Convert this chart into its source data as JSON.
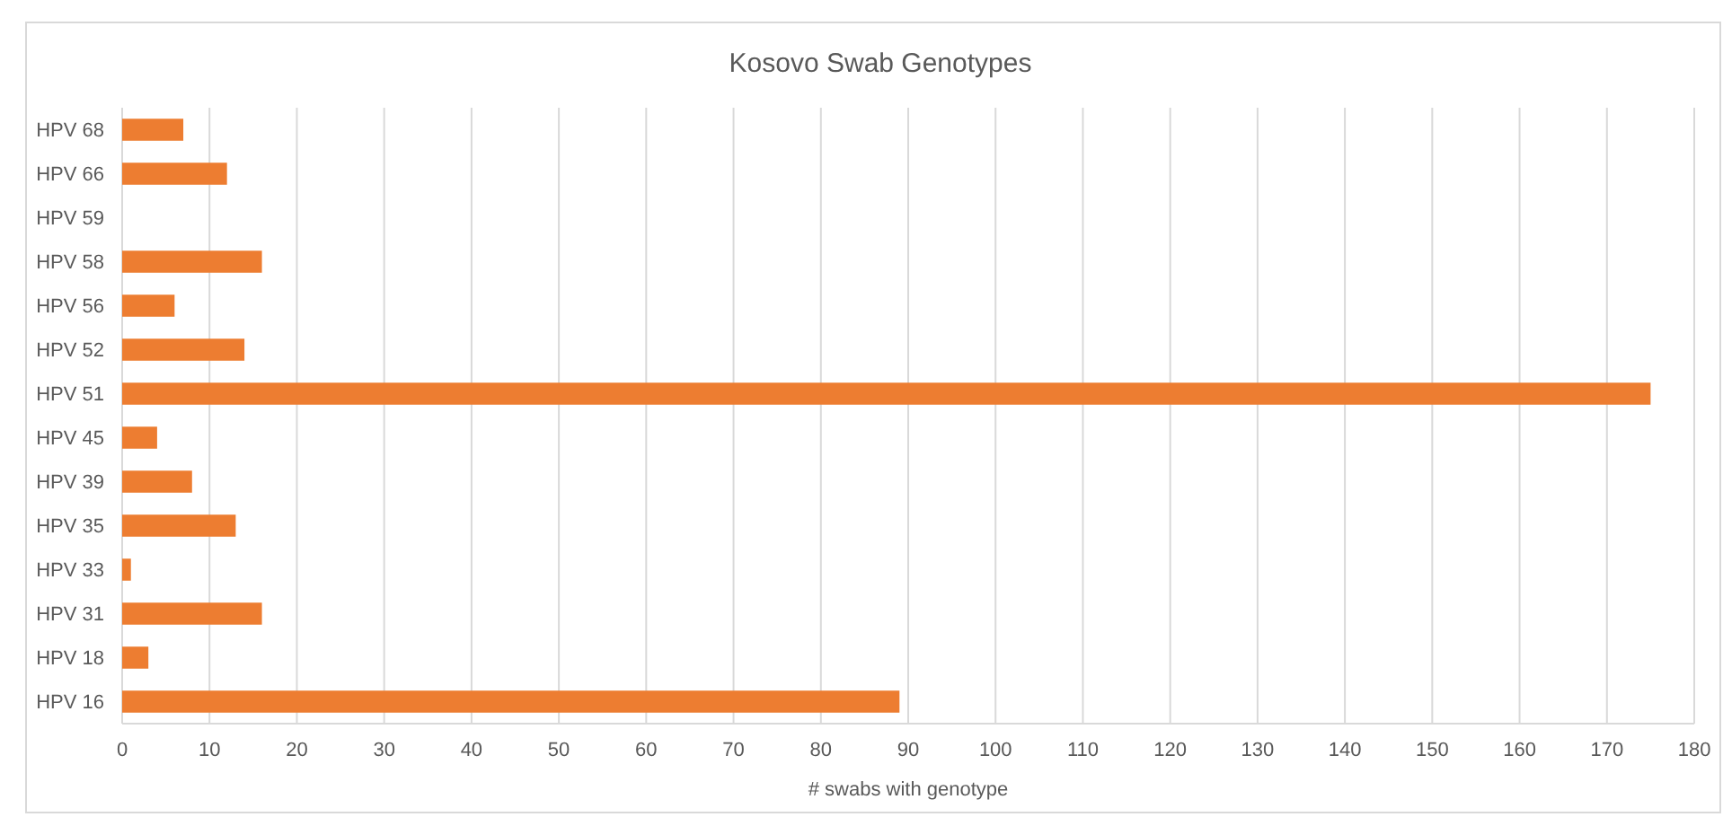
{
  "chart_data": {
    "type": "bar",
    "orientation": "horizontal",
    "title": "Kosovo Swab Genotypes",
    "xlabel": "# swabs with genotype",
    "categories": [
      "HPV 68",
      "HPV 66",
      "HPV 59",
      "HPV 58",
      "HPV 56",
      "HPV 52",
      "HPV 51",
      "HPV 45",
      "HPV 39",
      "HPV 35",
      "HPV 33",
      "HPV 31",
      "HPV 18",
      "HPV 16"
    ],
    "values": [
      7,
      12,
      0,
      16,
      6,
      14,
      175,
      4,
      8,
      13,
      1,
      16,
      3,
      89
    ],
    "color": "#ed7d31",
    "xlim": [
      0,
      180
    ],
    "xticks": [
      0,
      10,
      20,
      30,
      40,
      50,
      60,
      70,
      80,
      90,
      100,
      110,
      120,
      130,
      140,
      150,
      160,
      170,
      180
    ],
    "grid": "x"
  }
}
